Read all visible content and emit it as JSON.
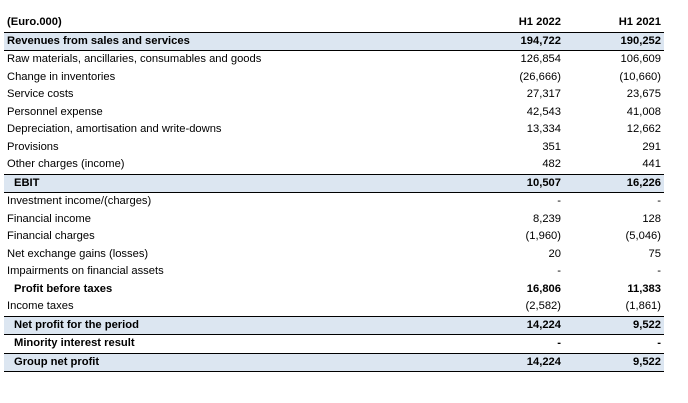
{
  "table": {
    "unit_label": "(Euro.000)",
    "col1_header": "H1 2022",
    "col2_header": "H1 2021",
    "rows": [
      {
        "label": "Revenues from sales and services",
        "v1": "194,722",
        "v2": "190,252"
      },
      {
        "label": "Raw materials, ancillaries, consumables and goods",
        "v1": "126,854",
        "v2": "106,609"
      },
      {
        "label": "Change in inventories",
        "v1": "(26,666)",
        "v2": "(10,660)"
      },
      {
        "label": "Service costs",
        "v1": "27,317",
        "v2": "23,675"
      },
      {
        "label": "Personnel expense",
        "v1": "42,543",
        "v2": "41,008"
      },
      {
        "label": "Depreciation, amortisation and write-downs",
        "v1": "13,334",
        "v2": "12,662"
      },
      {
        "label": "Provisions",
        "v1": "351",
        "v2": "291"
      },
      {
        "label": "Other charges (income)",
        "v1": "482",
        "v2": "441"
      },
      {
        "label": "EBIT",
        "v1": "10,507",
        "v2": "16,226"
      },
      {
        "label": "Investment income/(charges)",
        "v1": "-",
        "v2": "-"
      },
      {
        "label": "Financial income",
        "v1": "8,239",
        "v2": "128"
      },
      {
        "label": "Financial charges",
        "v1": "(1,960)",
        "v2": "(5,046)"
      },
      {
        "label": "Net exchange gains (losses)",
        "v1": "20",
        "v2": "75"
      },
      {
        "label": "Impairments on financial assets",
        "v1": "-",
        "v2": "-"
      },
      {
        "label": "Profit before taxes",
        "v1": "16,806",
        "v2": "11,383"
      },
      {
        "label": "Income taxes",
        "v1": "(2,582)",
        "v2": "(1,861)"
      },
      {
        "label": "Net profit for the period",
        "v1": "14,224",
        "v2": "9,522"
      },
      {
        "label": "Minority interest result",
        "v1": "-",
        "v2": "-"
      },
      {
        "label": "Group net profit",
        "v1": "14,224",
        "v2": "9,522"
      }
    ]
  }
}
